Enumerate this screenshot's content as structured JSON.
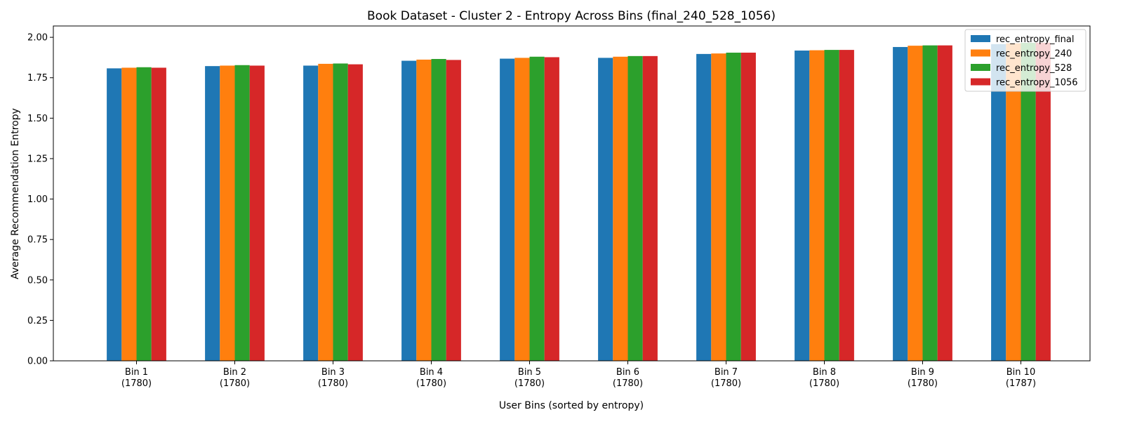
{
  "chart_data": {
    "type": "bar",
    "title": "Book Dataset - Cluster 2 - Entropy Across Bins (final_240_528_1056)",
    "xlabel": "User Bins (sorted by entropy)",
    "ylabel": "Average Recommendation Entropy",
    "ylim": [
      0,
      2.07
    ],
    "yticks": [
      "0.00",
      "0.25",
      "0.50",
      "0.75",
      "1.00",
      "1.25",
      "1.50",
      "1.75",
      "2.00"
    ],
    "grid": false,
    "legend_position": "top-right",
    "categories": [
      {
        "name": "Bin 1",
        "count": "(1780)"
      },
      {
        "name": "Bin 2",
        "count": "(1780)"
      },
      {
        "name": "Bin 3",
        "count": "(1780)"
      },
      {
        "name": "Bin 4",
        "count": "(1780)"
      },
      {
        "name": "Bin 5",
        "count": "(1780)"
      },
      {
        "name": "Bin 6",
        "count": "(1780)"
      },
      {
        "name": "Bin 7",
        "count": "(1780)"
      },
      {
        "name": "Bin 8",
        "count": "(1780)"
      },
      {
        "name": "Bin 9",
        "count": "(1780)"
      },
      {
        "name": "Bin 10",
        "count": "(1787)"
      }
    ],
    "series": [
      {
        "name": "rec_entropy_final",
        "color": "#1f77b4",
        "values": [
          1.808,
          1.822,
          1.825,
          1.855,
          1.868,
          1.873,
          1.897,
          1.918,
          1.94,
          1.958
        ]
      },
      {
        "name": "rec_entropy_240",
        "color": "#ff7f0e",
        "values": [
          1.812,
          1.825,
          1.836,
          1.862,
          1.873,
          1.88,
          1.9,
          1.92,
          1.948,
          1.963
        ]
      },
      {
        "name": "rec_entropy_528",
        "color": "#2ca02c",
        "values": [
          1.815,
          1.828,
          1.838,
          1.866,
          1.88,
          1.884,
          1.905,
          1.922,
          1.95,
          1.966
        ]
      },
      {
        "name": "rec_entropy_1056",
        "color": "#d62728",
        "values": [
          1.812,
          1.825,
          1.833,
          1.86,
          1.877,
          1.884,
          1.905,
          1.922,
          1.95,
          1.967
        ]
      }
    ]
  }
}
